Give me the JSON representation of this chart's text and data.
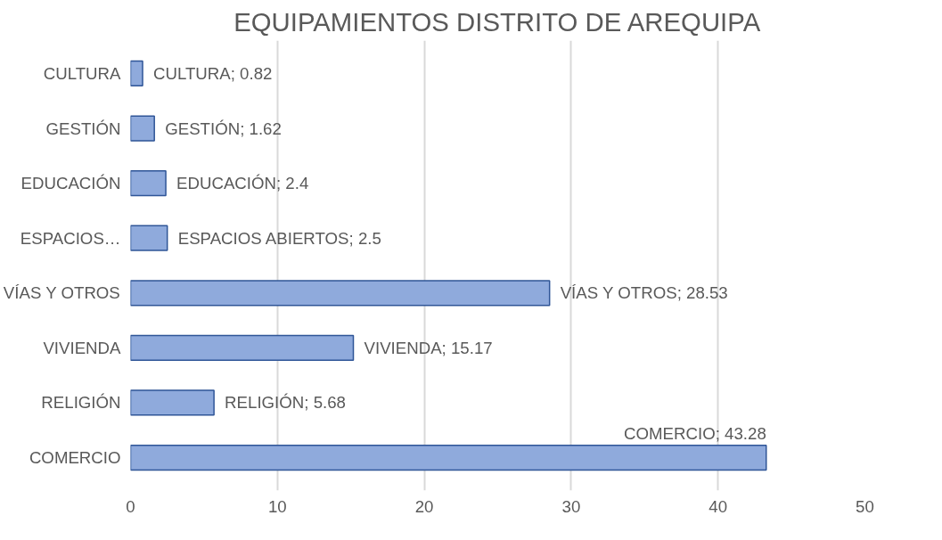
{
  "chart_data": {
    "type": "bar",
    "orientation": "horizontal",
    "title": "EQUIPAMIENTOS DISTRITO DE AREQUIPA",
    "categories": [
      "CULTURA",
      "GESTIÓN",
      "EDUCACIÓN",
      "ESPACIOS…",
      "VÍAS Y OTROS",
      "VIVIENDA",
      "RELIGIÓN",
      "COMERCIO"
    ],
    "values": [
      0.82,
      1.62,
      2.4,
      2.5,
      28.53,
      15.17,
      5.68,
      43.28
    ],
    "value_labels": [
      "CULTURA; 0.82",
      "GESTIÓN; 1.62",
      "EDUCACIÓN; 2.4",
      "ESPACIOS ABIERTOS; 2.5",
      "VÍAS Y OTROS; 28.53",
      "VIVIENDA; 15.17",
      "RELIGIÓN; 5.68",
      "COMERCIO; 43.28"
    ],
    "color": "#8faadc",
    "xlim": [
      0,
      50
    ],
    "xticks": [
      0,
      10,
      20,
      30,
      40,
      50
    ],
    "grid": "x"
  }
}
